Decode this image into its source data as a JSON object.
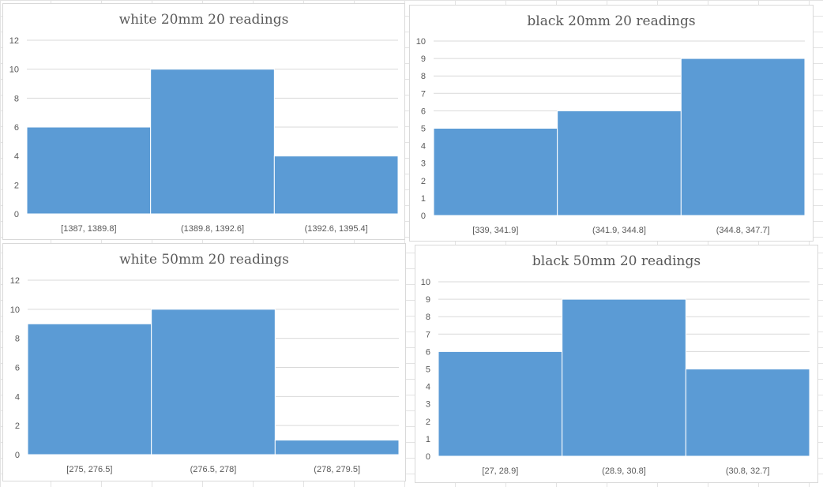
{
  "chart_data": [
    {
      "type": "bar",
      "title": "white 20mm 20 readings",
      "categories": [
        "[1387, 1389.8]",
        "(1389.8, 1392.6]",
        "(1392.6, 1395.4]"
      ],
      "values": [
        6,
        10,
        4
      ],
      "ylim": [
        0,
        12
      ],
      "yticks": [
        0,
        2,
        4,
        6,
        8,
        10,
        12
      ],
      "grid": true,
      "bar_color": "#5b9bd5"
    },
    {
      "type": "bar",
      "title": "black 20mm 20 readings",
      "categories": [
        "[339, 341.9]",
        "(341.9, 344.8]",
        "(344.8, 347.7]"
      ],
      "values": [
        5,
        6,
        9
      ],
      "ylim": [
        0,
        10
      ],
      "yticks": [
        0,
        1,
        2,
        3,
        4,
        5,
        6,
        7,
        8,
        9,
        10
      ],
      "grid": true,
      "bar_color": "#5b9bd5"
    },
    {
      "type": "bar",
      "title": "white 50mm 20 readings",
      "categories": [
        "[275, 276.5]",
        "(276.5, 278]",
        "(278, 279.5]"
      ],
      "values": [
        9,
        10,
        1
      ],
      "ylim": [
        0,
        12
      ],
      "yticks": [
        0,
        2,
        4,
        6,
        8,
        10,
        12
      ],
      "grid": true,
      "bar_color": "#5b9bd5"
    },
    {
      "type": "bar",
      "title": "black 50mm 20 readings",
      "categories": [
        "[27, 28.9]",
        "(28.9, 30.8]",
        "(30.8, 32.7]"
      ],
      "values": [
        6,
        9,
        5
      ],
      "ylim": [
        0,
        10
      ],
      "yticks": [
        0,
        1,
        2,
        3,
        4,
        5,
        6,
        7,
        8,
        9,
        10
      ],
      "grid": true,
      "bar_color": "#5b9bd5"
    }
  ]
}
